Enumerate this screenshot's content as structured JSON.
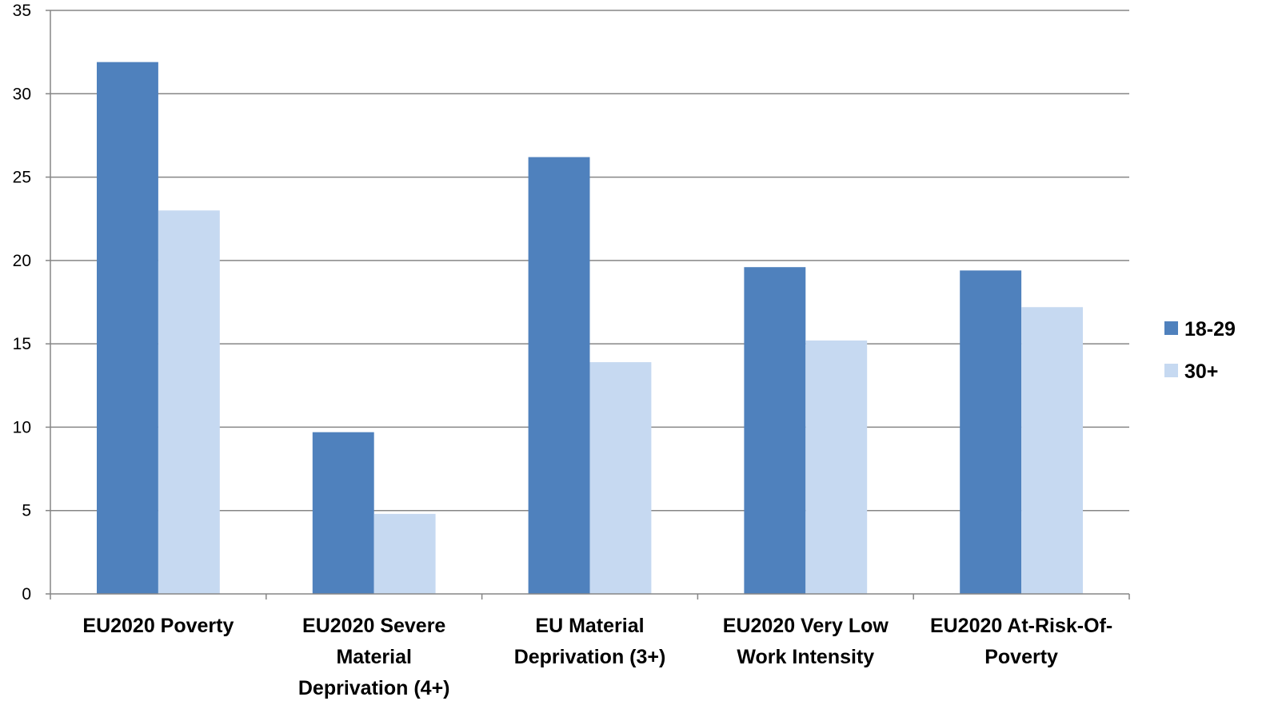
{
  "chart_data": {
    "type": "bar",
    "title": "",
    "xlabel": "",
    "ylabel": "",
    "ylim": [
      0,
      35
    ],
    "yticks": [
      "0",
      "5",
      "10",
      "15",
      "20",
      "25",
      "30",
      "35"
    ],
    "grid": true,
    "legend_position": "right",
    "categories": [
      [
        "EU2020 Poverty"
      ],
      [
        "EU2020 Severe",
        "Material",
        "Deprivation (4+)"
      ],
      [
        "EU Material",
        "Deprivation (3+)"
      ],
      [
        "EU2020 Very Low",
        "Work Intensity"
      ],
      [
        "EU2020 At-Risk-Of-",
        "Poverty"
      ]
    ],
    "series": [
      {
        "name": "18-29",
        "color": "#4F81BD",
        "values": [
          31.9,
          9.7,
          26.2,
          19.6,
          19.4
        ]
      },
      {
        "name": "30+",
        "color": "#C6D9F1",
        "values": [
          23.0,
          4.8,
          13.9,
          15.2,
          17.2
        ]
      }
    ]
  }
}
